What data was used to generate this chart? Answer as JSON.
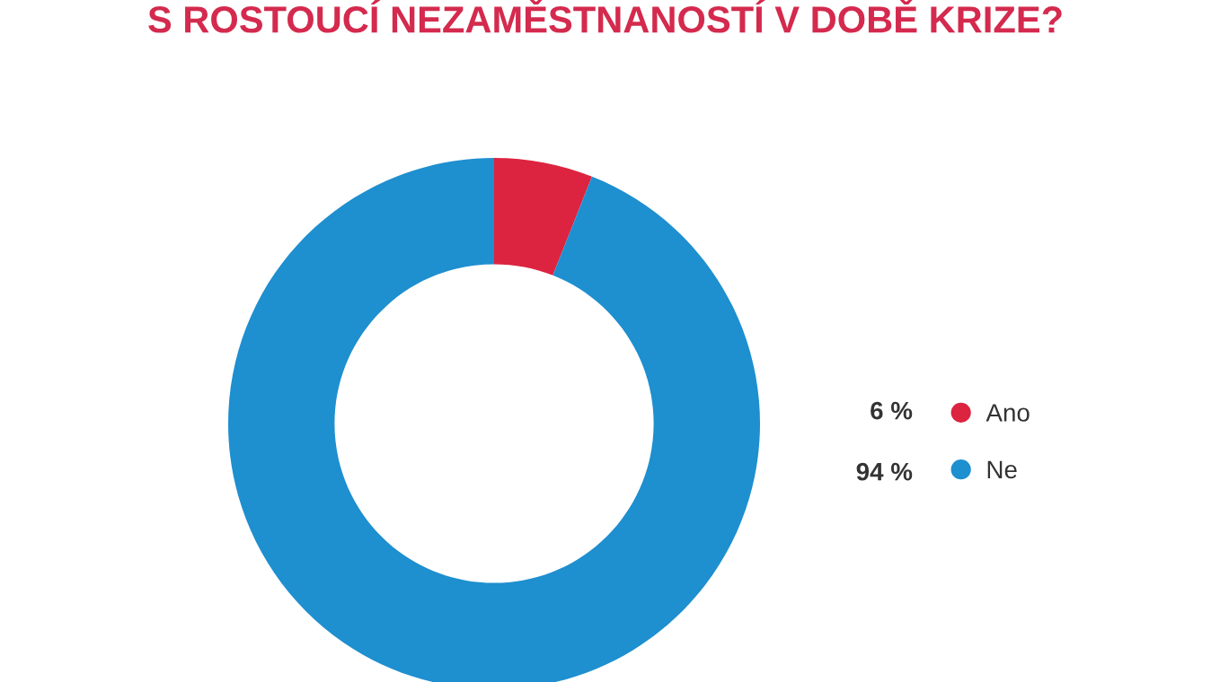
{
  "chart_data": {
    "type": "donut",
    "title": "S ROSTOUCÍ NEZAMĚSTNANOSTÍ V DOBĚ KRIZE?",
    "categories": [
      "Ano",
      "Ne"
    ],
    "values": [
      6,
      94
    ],
    "value_labels": [
      "6 %",
      "94 %"
    ],
    "colors": [
      "#dc2440",
      "#1e8fcf"
    ],
    "legend": "right"
  }
}
